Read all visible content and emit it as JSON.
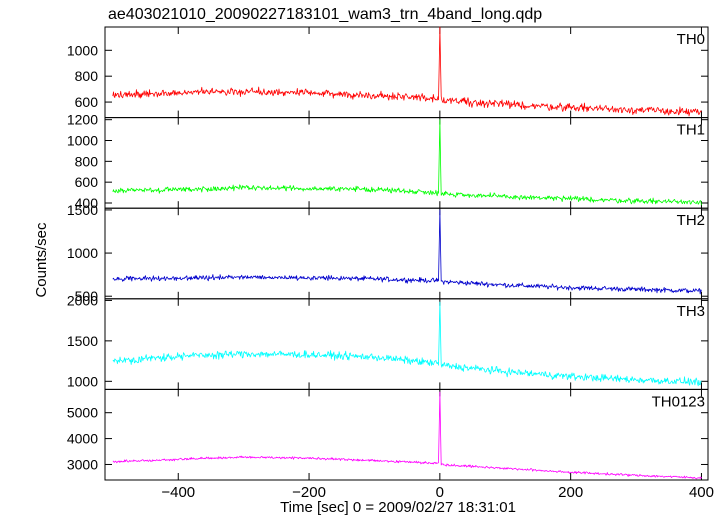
{
  "title": "ae403021010_20090227183101_wam3_trn_4band_long.qdp",
  "ylabel": "Counts/sec",
  "xlabel": "Time [sec] 0 = 2009/02/27 18:31:01",
  "chart_data": {
    "type": "line",
    "title": "ae403021010_20090227183101_wam3_trn_4band_long.qdp",
    "xlabel": "Time [sec] 0 = 2009/02/27 18:31:01",
    "ylabel": "Counts/sec",
    "xlim": [
      -512,
      410
    ],
    "x_ticks": [
      -400,
      -200,
      0,
      200,
      400
    ],
    "x_tick_labels": [
      "−400",
      "−200",
      "0",
      "200",
      "400"
    ],
    "grid": false,
    "series": [
      {
        "name": "TH0",
        "color": "#ff0000",
        "ylim": [
          480,
          1180
        ],
        "y_ticks": [
          600,
          800,
          1000
        ],
        "y_tick_labels": [
          "600",
          "800",
          "1000"
        ],
        "x": [
          -500,
          -400,
          -300,
          -200,
          -100,
          -2,
          0,
          2,
          100,
          200,
          300,
          400
        ],
        "y": [
          650,
          670,
          680,
          670,
          650,
          630,
          1180,
          620,
          580,
          560,
          540,
          520
        ],
        "noise": 30
      },
      {
        "name": "TH1",
        "color": "#00ff00",
        "ylim": [
          350,
          1220
        ],
        "y_ticks": [
          400,
          600,
          800,
          1000,
          1200
        ],
        "y_tick_labels": [
          "400",
          "600",
          "800",
          "1000",
          "1200"
        ],
        "x": [
          -500,
          -400,
          -300,
          -200,
          -100,
          -2,
          0,
          2,
          100,
          200,
          300,
          400
        ],
        "y": [
          520,
          530,
          545,
          540,
          530,
          500,
          1200,
          490,
          460,
          440,
          420,
          410
        ],
        "noise": 25
      },
      {
        "name": "TH2",
        "color": "#0000cc",
        "ylim": [
          470,
          1520
        ],
        "y_ticks": [
          500,
          1000,
          1500
        ],
        "y_tick_labels": [
          "500",
          "1000",
          "1500"
        ],
        "x": [
          -500,
          -400,
          -300,
          -200,
          -100,
          -2,
          0,
          2,
          100,
          200,
          300,
          400
        ],
        "y": [
          700,
          710,
          720,
          715,
          700,
          680,
          1500,
          670,
          630,
          600,
          580,
          560
        ],
        "noise": 28
      },
      {
        "name": "TH3",
        "color": "#00ffff",
        "ylim": [
          900,
          2020
        ],
        "y_ticks": [
          1000,
          1500,
          2000
        ],
        "y_tick_labels": [
          "1000",
          "1500",
          "2000"
        ],
        "x": [
          -500,
          -400,
          -300,
          -200,
          -100,
          -2,
          0,
          2,
          100,
          200,
          300,
          400
        ],
        "y": [
          1250,
          1310,
          1340,
          1330,
          1300,
          1220,
          1980,
          1200,
          1120,
          1060,
          1020,
          990
        ],
        "noise": 45
      },
      {
        "name": "TH0123",
        "color": "#ff00ff",
        "ylim": [
          2400,
          5900
        ],
        "y_ticks": [
          3000,
          4000,
          5000
        ],
        "y_tick_labels": [
          "3000",
          "4000",
          "5000"
        ],
        "x": [
          -500,
          -400,
          -300,
          -200,
          -100,
          -2,
          0,
          2,
          100,
          200,
          300,
          400
        ],
        "y": [
          3100,
          3200,
          3280,
          3250,
          3150,
          3050,
          5800,
          3000,
          2850,
          2700,
          2580,
          2480
        ],
        "noise": 45
      }
    ]
  }
}
